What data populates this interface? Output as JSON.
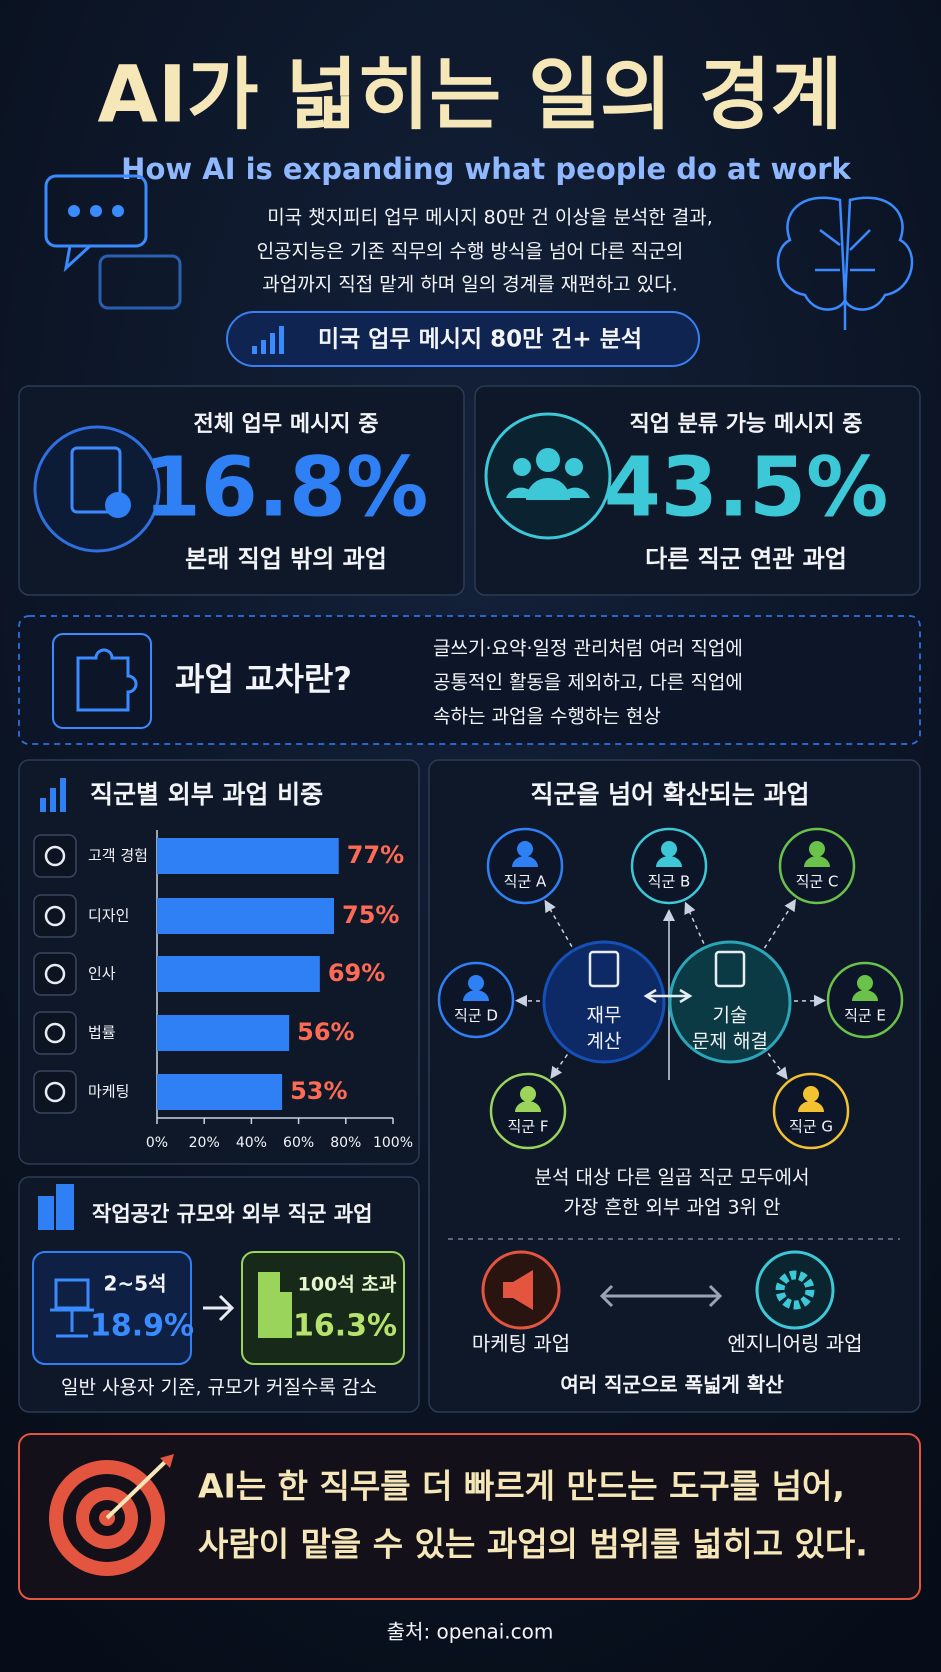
{
  "header": {
    "title": "AI가 넓히는 일의 경계",
    "subtitle": "How AI is expanding what people do at work",
    "description": [
      "미국 챗지피티 업무 메시지 80만 건 이상을 분석한 결과,",
      "인공지능은 기존 직무의 수행 방식을 넘어 다른 직군의",
      "과업까지 직접 맡게 하며 일의 경계를 재편하고 있다."
    ],
    "badge": "미국 업무 메시지 80만 건+ 분석"
  },
  "stats": [
    {
      "label": "전체 업무 메시지 중",
      "value": "16.8%",
      "caption": "본래 직업 밖의 과업"
    },
    {
      "label": "직업 분류 가능 메시지 중",
      "value": "43.5%",
      "caption": "다른 직군 연관 과업"
    }
  ],
  "definition": {
    "title": "과업 교차란?",
    "lines": [
      "글쓰기·요약·일정 관리처럼 여러 직업에",
      "공통적인 활동을 제외하고, 다른 직업에",
      "속하는 과업을 수행하는 현상"
    ]
  },
  "chart_data": {
    "type": "bar",
    "title": "직군별 외부 과업 비중",
    "categories": [
      "고객 경험",
      "디자인",
      "인사",
      "법률",
      "마케팅"
    ],
    "values": [
      77,
      75,
      69,
      56,
      53
    ],
    "value_labels": [
      "77%",
      "75%",
      "69%",
      "56%",
      "53%"
    ],
    "color": "#2f80f5",
    "xlim": [
      0,
      100
    ],
    "xticks": [
      {
        "value": 0,
        "label": "0%"
      },
      {
        "value": 20,
        "label": "20%"
      },
      {
        "value": 40,
        "label": "40%"
      },
      {
        "value": 60,
        "label": "60%"
      },
      {
        "value": 80,
        "label": "80%"
      },
      {
        "value": 100,
        "label": "100%"
      }
    ]
  },
  "workspace": {
    "title": "작업공간 규모와 외부 직군 과업",
    "small": {
      "label": "2~5석",
      "value": "18.9%"
    },
    "large": {
      "label": "100석 초과",
      "value": "16.3%"
    },
    "note": "일반 사용자 기준, 규모가 커질수록 감소"
  },
  "diagram": {
    "title": "직군을 넘어 확산되는 과업",
    "hubs": [
      [
        "재무",
        "계산"
      ],
      [
        "기술",
        "문제 해결"
      ]
    ],
    "nodes": [
      "직군 A",
      "직군 B",
      "직군 C",
      "직군 D",
      "직군 E",
      "직군 F",
      "직군 G"
    ],
    "caption": [
      "분석 대상 다른 일곱 직군 모두에서",
      "가장 흔한 외부 과업 3위 안"
    ],
    "spread": {
      "left": "마케팅 과업",
      "right": "엔지니어링 과업",
      "caption": "여러 직군으로 폭넓게 확산"
    }
  },
  "conclusion": [
    "AI는 한 직무를 더 빠르게 만드는 도구를 넘어,",
    "사람이 맡을 수 있는 과업의 범위를 넓히고 있다."
  ],
  "source": "출처: openai.com"
}
